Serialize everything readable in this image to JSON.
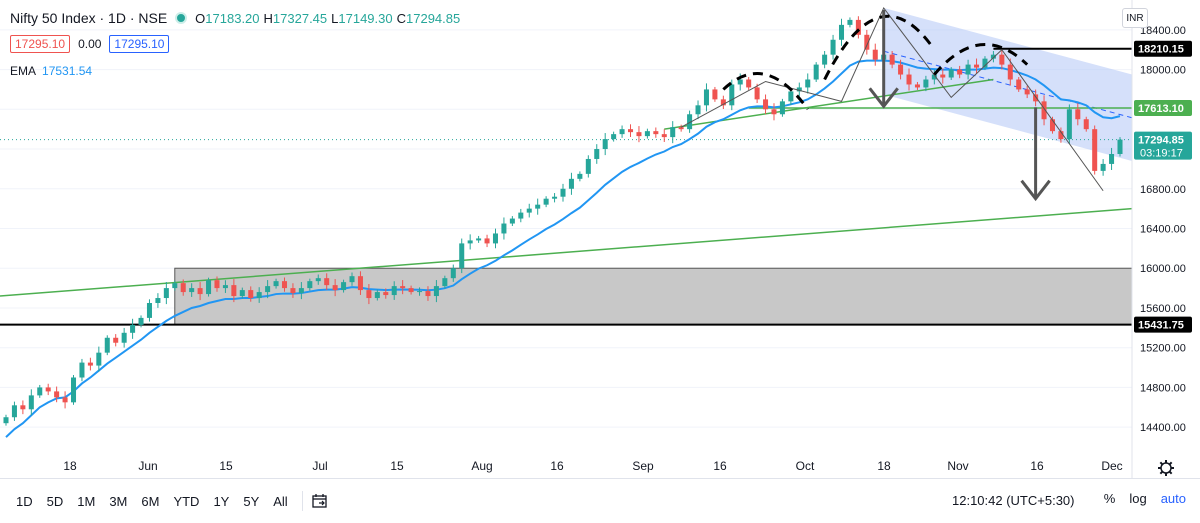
{
  "header": {
    "title": "Nifty 50 Index · 1D · NSE",
    "open_label": "O",
    "open": "17183.20",
    "high_label": "H",
    "high": "17327.45",
    "low_label": "L",
    "low": "17149.30",
    "close_label": "C",
    "close": "17294.85",
    "sell_price": "17295.10",
    "spread": "0.00",
    "buy_price": "17295.10",
    "ema_label": "EMA",
    "ema_value": "17531.54",
    "currency": "INR"
  },
  "price_labels": {
    "level_high": "18210.15",
    "level_mid": "17613.10",
    "last_price": "17294.85",
    "countdown": "03:19:17",
    "level_low": "15431.75"
  },
  "toolbar": {
    "ranges": [
      "1D",
      "5D",
      "1M",
      "3M",
      "6M",
      "YTD",
      "1Y",
      "5Y",
      "All"
    ],
    "clock": "12:10:42 (UTC+5:30)",
    "percent": "%",
    "log": "log",
    "auto": "auto"
  },
  "colors": {
    "up": "#26a69a",
    "down": "#ef5350",
    "ema": "#2196f3",
    "trendline": "#4caf50",
    "channel": "#b3c6f5",
    "zone": "#c8c8c8"
  },
  "chart_data": {
    "type": "candlestick",
    "x_ticks": [
      "18",
      "Jun",
      "15",
      "Jul",
      "15",
      "Aug",
      "16",
      "Sep",
      "16",
      "Oct",
      "18",
      "Nov",
      "16",
      "Dec"
    ],
    "y_ticks": [
      18400,
      18000,
      17600,
      17200,
      16800,
      16400,
      16000,
      15600,
      15200,
      14800,
      14400
    ],
    "y_range": [
      14150,
      18650
    ],
    "horizontal_levels": [
      18210.15,
      17613.1,
      15431.75
    ],
    "last_price": 17294.85,
    "ema_name": "EMA",
    "ema_last": 17531.54,
    "support_zone": [
      15431.75,
      16000
    ],
    "closes": [
      14500,
      14620,
      14580,
      14720,
      14800,
      14760,
      14700,
      14650,
      14900,
      15050,
      15020,
      15150,
      15300,
      15250,
      15350,
      15430,
      15500,
      15650,
      15700,
      15800,
      15850,
      15760,
      15800,
      15740,
      15880,
      15800,
      15830,
      15720,
      15780,
      15700,
      15760,
      15820,
      15870,
      15800,
      15750,
      15800,
      15870,
      15900,
      15830,
      15780,
      15860,
      15920,
      15780,
      15700,
      15760,
      15730,
      15820,
      15800,
      15760,
      15770,
      15720,
      15820,
      15900,
      16000,
      16250,
      16280,
      16300,
      16250,
      16350,
      16450,
      16500,
      16560,
      16600,
      16640,
      16700,
      16720,
      16800,
      16900,
      16950,
      17100,
      17200,
      17300,
      17350,
      17400,
      17370,
      17330,
      17380,
      17350,
      17320,
      17420,
      17400,
      17550,
      17640,
      17800,
      17700,
      17640,
      17850,
      17900,
      17820,
      17700,
      17600,
      17550,
      17680,
      17780,
      17820,
      17900,
      18050,
      18150,
      18300,
      18450,
      18500,
      18350,
      18200,
      18100,
      18150,
      18050,
      17950,
      17850,
      17820,
      17900,
      17950,
      17920,
      18000,
      17950,
      18050,
      18020,
      18110,
      18150,
      18050,
      17900,
      17800,
      17750,
      17680,
      17500,
      17380,
      17300,
      17600,
      17500,
      17400,
      16980,
      17050,
      17150,
      17294.85
    ],
    "ema": [
      14300,
      14380,
      14440,
      14520,
      14600,
      14650,
      14690,
      14700,
      14760,
      14840,
      14900,
      14970,
      15040,
      15100,
      15160,
      15220,
      15280,
      15350,
      15410,
      15470,
      15520,
      15560,
      15600,
      15620,
      15650,
      15670,
      15690,
      15690,
      15700,
      15700,
      15710,
      15720,
      15740,
      15745,
      15745,
      15750,
      15765,
      15780,
      15785,
      15785,
      15795,
      15810,
      15805,
      15790,
      15785,
      15780,
      15785,
      15786,
      15785,
      15783,
      15778,
      15784,
      15799,
      15826,
      15890,
      15945,
      15996,
      16030,
      16075,
      16130,
      16180,
      16236,
      16290,
      16340,
      16395,
      16440,
      16495,
      16555,
      16610,
      16685,
      16760,
      16840,
      16905,
      16970,
      17020,
      17060,
      17105,
      17145,
      17175,
      17220,
      17250,
      17300,
      17355,
      17425,
      17470,
      17500,
      17545,
      17590,
      17620,
      17630,
      17630,
      17620,
      17630,
      17650,
      17670,
      17700,
      17750,
      17810,
      17880,
      17960,
      18040,
      18080,
      18090,
      18090,
      18090,
      18085,
      18070,
      18045,
      18020,
      18010,
      18005,
      18000,
      18000,
      17995,
      18000,
      18000,
      18010,
      18020,
      18015,
      17995,
      17970,
      17940,
      17900,
      17840,
      17770,
      17700,
      17690,
      17670,
      17640,
      17570,
      17520,
      17510,
      17531.54
    ]
  }
}
